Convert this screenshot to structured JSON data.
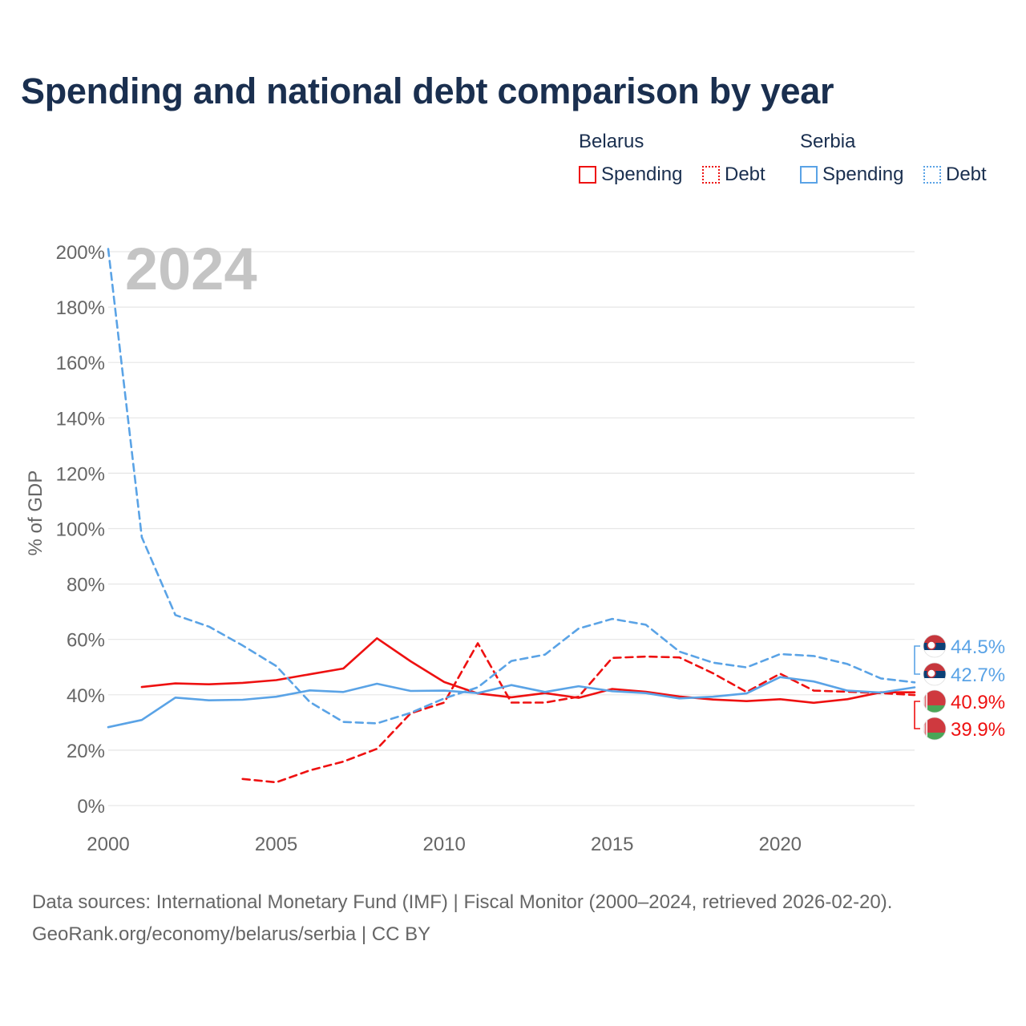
{
  "title": "Spending and national debt comparison by year",
  "year_badge": "2024",
  "legend": {
    "groups": [
      {
        "country": "Belarus",
        "items": [
          {
            "label": "Spending",
            "style": "solid",
            "color": "#ee1111"
          },
          {
            "label": "Debt",
            "style": "dotted",
            "color": "#ee1111"
          }
        ]
      },
      {
        "country": "Serbia",
        "items": [
          {
            "label": "Spending",
            "style": "solid",
            "color": "#5aa3e6"
          },
          {
            "label": "Debt",
            "style": "dotted",
            "color": "#5aa3e6"
          }
        ]
      }
    ]
  },
  "footer": {
    "sources": "Data sources: International Monetary Fund (IMF) | Fiscal Monitor (2000–2024, retrieved 2026-02-20).",
    "credit": "GeoRank.org/economy/belarus/serbia | CC BY"
  },
  "chart_data": {
    "type": "line",
    "title": "Spending and national debt comparison by year",
    "xlabel": "",
    "ylabel": "% of GDP",
    "xlim": [
      2000,
      2024
    ],
    "ylim": [
      0,
      200
    ],
    "x_ticks": [
      2000,
      2005,
      2010,
      2015,
      2020
    ],
    "x_tick_labels": [
      "2000",
      "2005",
      "2010",
      "2015",
      "2020"
    ],
    "y_ticks": [
      0,
      20,
      40,
      60,
      80,
      100,
      120,
      140,
      160,
      180,
      200
    ],
    "y_tick_labels": [
      "0%",
      "20%",
      "40%",
      "60%",
      "80%",
      "100%",
      "120%",
      "140%",
      "160%",
      "180%",
      "200%"
    ],
    "grid": true,
    "series": [
      {
        "name": "Belarus Spending",
        "country": "Belarus",
        "metric": "Spending",
        "color": "#ee1111",
        "dash": "solid",
        "x": [
          2001,
          2002,
          2003,
          2004,
          2005,
          2006,
          2007,
          2008,
          2009,
          2010,
          2011,
          2012,
          2013,
          2014,
          2015,
          2016,
          2017,
          2018,
          2019,
          2020,
          2021,
          2022,
          2023,
          2024
        ],
        "values": [
          42.8,
          44.1,
          43.8,
          44.3,
          45.3,
          47.4,
          49.5,
          60.4,
          52.1,
          44.6,
          40.5,
          39.1,
          40.6,
          38.9,
          42.1,
          41.1,
          39.4,
          38.3,
          37.7,
          38.4,
          37.1,
          38.4,
          40.9,
          40.9
        ]
      },
      {
        "name": "Belarus Debt",
        "country": "Belarus",
        "metric": "Debt",
        "color": "#ee1111",
        "dash": "dashed",
        "x": [
          2004,
          2005,
          2006,
          2007,
          2008,
          2009,
          2010,
          2011,
          2012,
          2013,
          2014,
          2015,
          2016,
          2017,
          2018,
          2019,
          2020,
          2021,
          2022,
          2023,
          2024
        ],
        "values": [
          9.6,
          8.4,
          12.7,
          15.9,
          20.5,
          33.3,
          37.2,
          58.6,
          37.2,
          37.2,
          39.3,
          53.3,
          53.8,
          53.5,
          47.8,
          41.0,
          47.6,
          41.5,
          41.1,
          40.6,
          39.9
        ]
      },
      {
        "name": "Serbia Spending",
        "country": "Serbia",
        "metric": "Spending",
        "color": "#5aa3e6",
        "dash": "solid",
        "x": [
          2000,
          2001,
          2002,
          2003,
          2004,
          2005,
          2006,
          2007,
          2008,
          2009,
          2010,
          2011,
          2012,
          2013,
          2014,
          2015,
          2016,
          2017,
          2018,
          2019,
          2020,
          2021,
          2022,
          2023,
          2024
        ],
        "values": [
          28.3,
          30.9,
          39.0,
          38.0,
          38.2,
          39.3,
          41.6,
          41.0,
          44.0,
          41.4,
          41.5,
          40.6,
          43.5,
          41.0,
          43.1,
          41.3,
          40.6,
          38.7,
          39.3,
          40.5,
          46.4,
          44.8,
          41.5,
          40.8,
          42.7
        ]
      },
      {
        "name": "Serbia Debt",
        "country": "Serbia",
        "metric": "Debt",
        "color": "#5aa3e6",
        "dash": "dashed",
        "x": [
          2000,
          2001,
          2002,
          2003,
          2004,
          2005,
          2006,
          2007,
          2008,
          2009,
          2010,
          2011,
          2012,
          2013,
          2014,
          2015,
          2016,
          2017,
          2018,
          2019,
          2020,
          2021,
          2022,
          2023,
          2024
        ],
        "values": [
          201.0,
          96.9,
          68.8,
          64.6,
          57.8,
          50.4,
          37.4,
          30.2,
          29.7,
          33.5,
          38.7,
          42.7,
          52.2,
          54.5,
          63.9,
          67.4,
          65.3,
          55.6,
          51.6,
          49.9,
          54.7,
          54.0,
          51.1,
          45.9,
          44.5
        ]
      }
    ],
    "end_labels": [
      {
        "country": "Serbia",
        "text": "44.5%",
        "value": 44.5,
        "color": "#5aa3e6"
      },
      {
        "country": "Serbia",
        "text": "42.7%",
        "value": 42.7,
        "color": "#5aa3e6"
      },
      {
        "country": "Belarus",
        "text": "40.9%",
        "value": 40.9,
        "color": "#ee1111"
      },
      {
        "country": "Belarus",
        "text": "39.9%",
        "value": 39.9,
        "color": "#ee1111"
      }
    ]
  }
}
